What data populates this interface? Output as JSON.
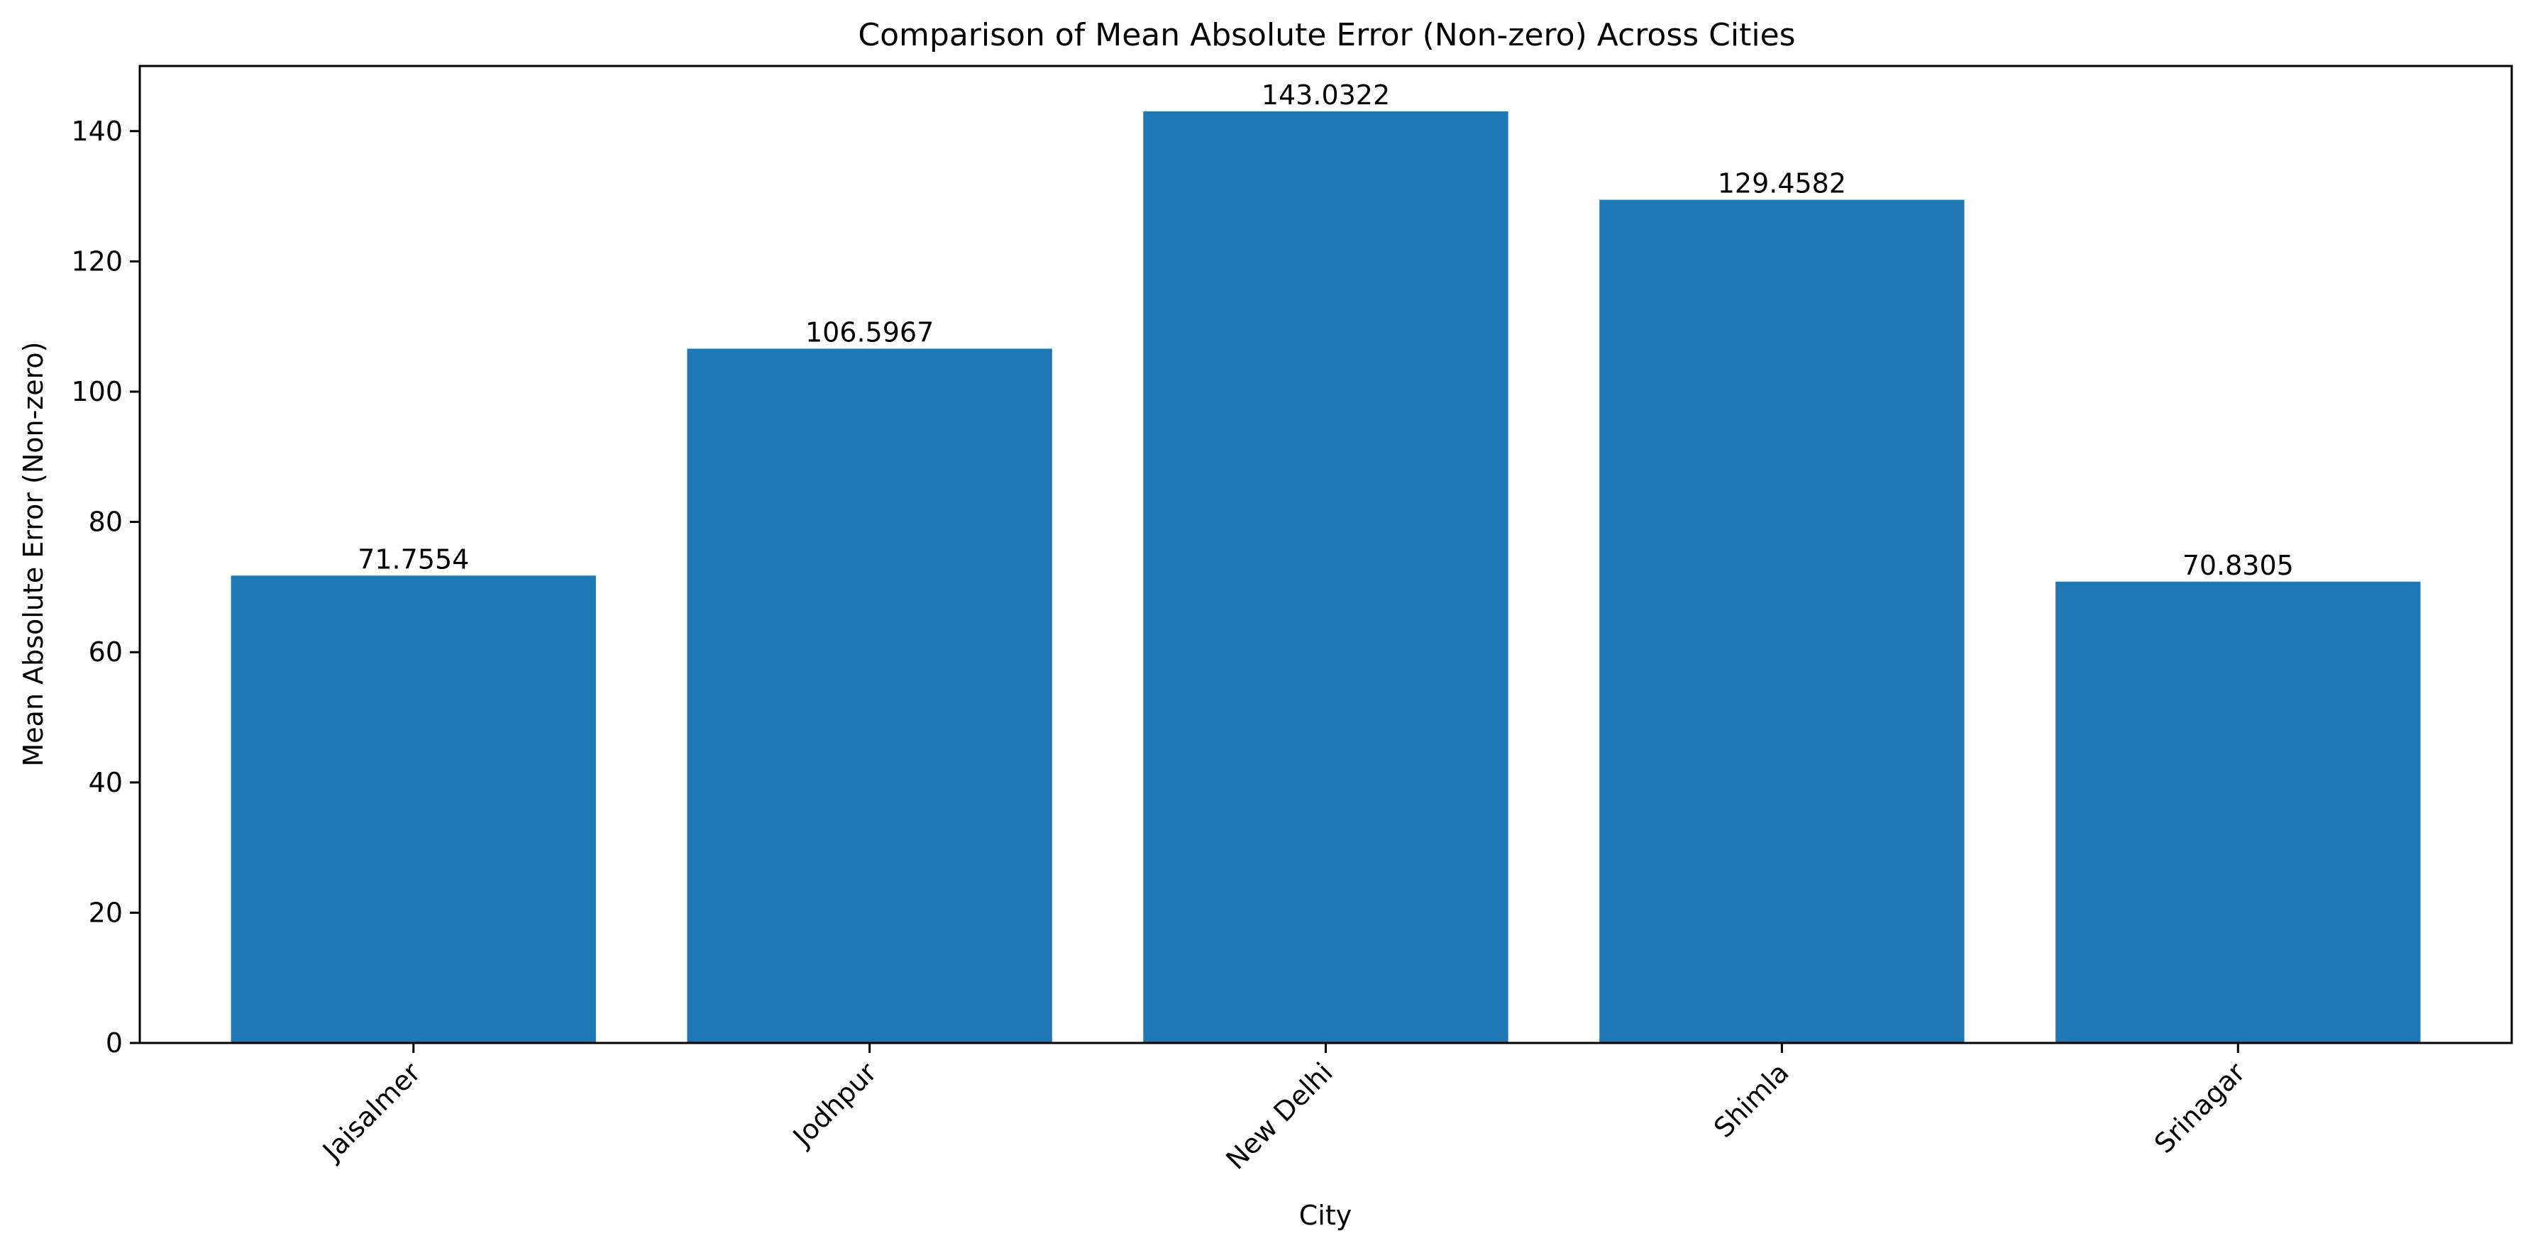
{
  "chart_data": {
    "type": "bar",
    "title": "Comparison of Mean Absolute Error (Non-zero) Across Cities",
    "xlabel": "City",
    "ylabel": "Mean Absolute Error (Non-zero)",
    "categories": [
      "Jaisalmer",
      "Jodhpur",
      "New Delhi",
      "Shimla",
      "Srinagar"
    ],
    "values": [
      71.7554,
      106.5967,
      143.0322,
      129.4582,
      70.8305
    ],
    "value_labels": [
      "71.7554",
      "106.5967",
      "143.0322",
      "129.4582",
      "70.8305"
    ],
    "ylim": [
      0,
      150
    ],
    "yticks": [
      0,
      20,
      40,
      60,
      80,
      100,
      120,
      140
    ],
    "grid": false,
    "x_tick_rotation": -45,
    "bar_color": "#1f77b4"
  }
}
